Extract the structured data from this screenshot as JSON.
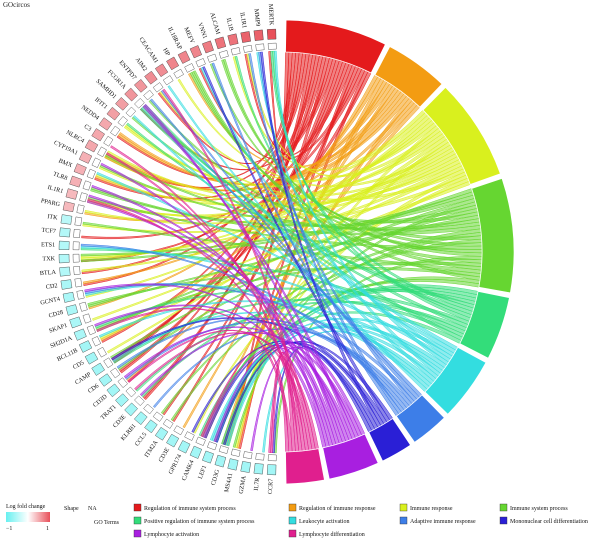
{
  "chart_data": {
    "type": "chord",
    "title": "GOcircos",
    "genes": [
      {
        "name": "MERTK",
        "logfc": 1.0
      },
      {
        "name": "MMP9",
        "logfc": 0.9
      },
      {
        "name": "IL1R1",
        "logfc": 0.9
      },
      {
        "name": "IL1B",
        "logfc": 0.8
      },
      {
        "name": "ALCAM",
        "logfc": 0.8
      },
      {
        "name": "VNN1",
        "logfc": 0.75
      },
      {
        "name": "MEFV",
        "logfc": 0.7
      },
      {
        "name": "IL18RAP",
        "logfc": 0.7
      },
      {
        "name": "HP",
        "logfc": 0.7
      },
      {
        "name": "CEACAM1",
        "logfc": 0.65
      },
      {
        "name": "AIM2",
        "logfc": 0.65
      },
      {
        "name": "ENTPD7",
        "logfc": 0.6
      },
      {
        "name": "FCGR1A",
        "logfc": 0.6
      },
      {
        "name": "SAMHD1",
        "logfc": 0.55
      },
      {
        "name": "IFIT1",
        "logfc": 0.55
      },
      {
        "name": "NEDD4",
        "logfc": 0.5
      },
      {
        "name": "C3",
        "logfc": 0.5
      },
      {
        "name": "NLRC4",
        "logfc": 0.5
      },
      {
        "name": "CYP19A1",
        "logfc": 0.45
      },
      {
        "name": "BMX",
        "logfc": 0.45
      },
      {
        "name": "TLR8",
        "logfc": 0.45
      },
      {
        "name": "IL1R1",
        "logfc": 0.4
      },
      {
        "name": "PPARG",
        "logfc": 0.4
      },
      {
        "name": "ITK",
        "logfc": -0.45
      },
      {
        "name": "TCF7",
        "logfc": -0.5
      },
      {
        "name": "ETS1",
        "logfc": -0.5
      },
      {
        "name": "TXK",
        "logfc": -0.5
      },
      {
        "name": "BTLA",
        "logfc": -0.5
      },
      {
        "name": "CD2",
        "logfc": -0.55
      },
      {
        "name": "GCNT4",
        "logfc": -0.55
      },
      {
        "name": "CD28",
        "logfc": -0.55
      },
      {
        "name": "SKAP1",
        "logfc": -0.55
      },
      {
        "name": "SH2D1A",
        "logfc": -0.55
      },
      {
        "name": "BCL11B",
        "logfc": -0.6
      },
      {
        "name": "CD5",
        "logfc": -0.6
      },
      {
        "name": "CAMP",
        "logfc": -0.6
      },
      {
        "name": "CD6",
        "logfc": -0.6
      },
      {
        "name": "CD3D",
        "logfc": -0.6
      },
      {
        "name": "TRAT1",
        "logfc": -0.6
      },
      {
        "name": "CD3E",
        "logfc": -0.6
      },
      {
        "name": "KLRB1",
        "logfc": -0.6
      },
      {
        "name": "CCL5",
        "logfc": -0.6
      },
      {
        "name": "ITM2A",
        "logfc": -0.6
      },
      {
        "name": "CD3E",
        "logfc": -0.6
      },
      {
        "name": "GPR174",
        "logfc": -0.6
      },
      {
        "name": "CAMK4",
        "logfc": -0.6
      },
      {
        "name": "LEF1",
        "logfc": -0.6
      },
      {
        "name": "CD3G",
        "logfc": -0.6
      },
      {
        "name": "MS4A1",
        "logfc": -0.6
      },
      {
        "name": "GZMA",
        "logfc": -0.6
      },
      {
        "name": "IL7R",
        "logfc": -0.6
      },
      {
        "name": "CCR7",
        "logfc": -0.6
      }
    ],
    "terms": [
      {
        "name": "Regulation of immune system process",
        "color": "#e41a1c",
        "weight": 16
      },
      {
        "name": "Regulation of immune response",
        "color": "#f39c12",
        "weight": 10
      },
      {
        "name": "Immune response",
        "color": "#d9f01e",
        "weight": 16
      },
      {
        "name": "Immune system process",
        "color": "#66d631",
        "weight": 18
      },
      {
        "name": "Positive regulation of immune system process",
        "color": "#33dd7a",
        "weight": 10
      },
      {
        "name": "Leukocyte activation",
        "color": "#33dde0",
        "weight": 10
      },
      {
        "name": "Adaptive immune response",
        "color": "#3d7ee8",
        "weight": 6
      },
      {
        "name": "Mononuclear cell differentiation",
        "color": "#2a1fd6",
        "weight": 5
      },
      {
        "name": "Lymphocyte activation",
        "color": "#a81fe0",
        "weight": 8
      },
      {
        "name": "Lymphocyte differentiation",
        "color": "#e01f8e",
        "weight": 6
      }
    ],
    "legend": {
      "logfc_title": "Log fold change",
      "logfc_min": "−1",
      "logfc_max": "1",
      "shape_title": "Shape",
      "shape_value": "NA",
      "terms_title": "GO Terms"
    },
    "colors": {
      "low": "#66f0f0",
      "mid": "#ffffff",
      "high": "#e8505a"
    }
  }
}
